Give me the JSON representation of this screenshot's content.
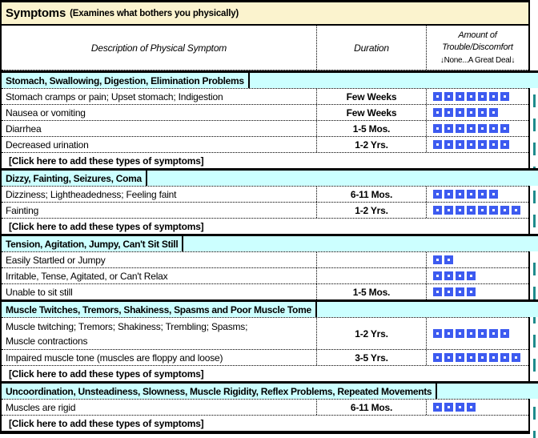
{
  "title": {
    "main": "Symptoms",
    "subtitle": "(Examines what bothers you physically)"
  },
  "columns": {
    "description": "Description of Physical Symptom",
    "duration": "Duration",
    "amount_line1": "Amount of",
    "amount_line2": "Trouble/Discomfort",
    "amount_line3": "↓None...A Great Deal↓"
  },
  "add_row_label": "[Click here to add these types of symptoms]",
  "colors": {
    "title_bg": "#FBF3CE",
    "section_bg": "#CCFFFF",
    "square": "#3D5BF0",
    "page_break": "#1F8B8C"
  },
  "sections": [
    {
      "title": "Stomach, Swallowing, Digestion, Elimination Problems",
      "has_add_row": true,
      "rows": [
        {
          "description": "Stomach cramps or pain; Upset stomach; Indigestion",
          "duration": "Few Weeks",
          "trouble": 7
        },
        {
          "description": "Nausea or vomiting",
          "duration": "Few Weeks",
          "trouble": 6
        },
        {
          "description": "Diarrhea",
          "duration": "1-5 Mos.",
          "trouble": 7
        },
        {
          "description": "Decreased urination",
          "duration": "1-2 Yrs.",
          "trouble": 7
        }
      ]
    },
    {
      "title": "Dizzy, Fainting, Seizures, Coma",
      "has_add_row": true,
      "rows": [
        {
          "description": "Dizziness; Lightheadedness; Feeling faint",
          "duration": "6-11 Mos.",
          "trouble": 6
        },
        {
          "description": "Fainting",
          "duration": "1-2 Yrs.",
          "trouble": 8
        }
      ]
    },
    {
      "title": "Tension, Agitation, Jumpy, Can't Sit Still",
      "has_add_row": false,
      "rows": [
        {
          "description": "Easily Startled or Jumpy",
          "duration": "",
          "trouble": 2
        },
        {
          "description": "Irritable, Tense, Agitated, or Can't Relax",
          "duration": "",
          "trouble": 4
        },
        {
          "description": "Unable to sit still",
          "duration": "1-5 Mos.",
          "trouble": 4
        }
      ]
    },
    {
      "title": "Muscle Twitches, Tremors, Shakiness, Spasms and Poor Muscle Tome",
      "has_add_row": true,
      "rows": [
        {
          "description": "Muscle twitching; Tremors; Shakiness; Trembling; Spasms;",
          "description2": "Muscle contractions",
          "duration": "1-2 Yrs.",
          "trouble": 7,
          "two_line": true
        },
        {
          "description": "Impaired muscle tone (muscles are floppy and loose)",
          "duration": "3-5 Yrs.",
          "trouble": 8
        }
      ]
    },
    {
      "title": "Uncoordination, Unsteadiness, Slowness, Muscle Rigidity, Reflex Problems, Repeated Movements",
      "has_add_row": true,
      "rows": [
        {
          "description": "Muscles are rigid",
          "duration": "6-11 Mos.",
          "trouble": 4
        }
      ]
    }
  ]
}
